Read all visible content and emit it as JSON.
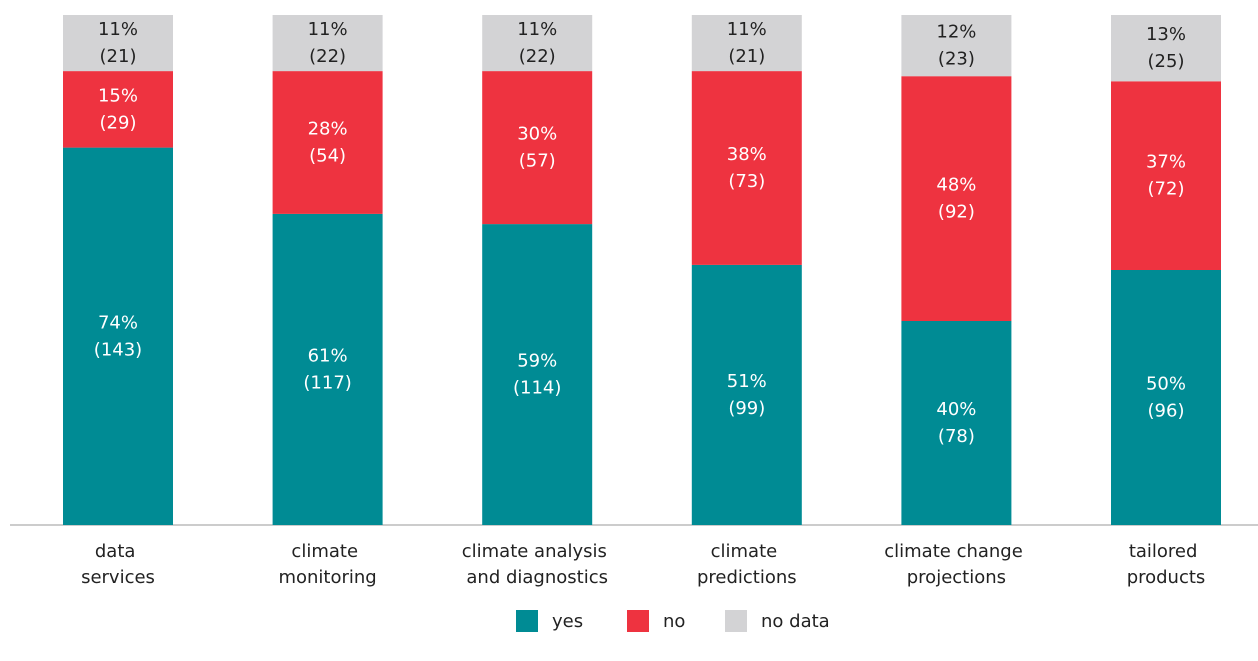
{
  "chart_data": {
    "type": "stacked_bar",
    "categories": [
      "data services",
      "climate monitoring",
      "climate analysis and diagnostics",
      "climate predictions",
      "climate change projections",
      "tailored products"
    ],
    "ylim": [
      0,
      100
    ],
    "series": [
      {
        "name": "yes",
        "color": "#008b94",
        "label_color": "#ffffff",
        "values": [
          74,
          61,
          59,
          51,
          40,
          50
        ],
        "value_labels": [
          "74%",
          "61%",
          "59%",
          "51%",
          "40%",
          "50%"
        ],
        "count_labels": [
          "(143)",
          "(117)",
          "(114)",
          "(99)",
          "(78)",
          "(96)"
        ]
      },
      {
        "name": "no",
        "color": "#ee3340",
        "label_color": "#ffffff",
        "values": [
          15,
          28,
          30,
          38,
          48,
          37
        ],
        "value_labels": [
          "15%",
          "28%",
          "30%",
          "38%",
          "48%",
          "37%"
        ],
        "count_labels": [
          "(29)",
          "(54)",
          "(57)",
          "(73)",
          "(92)",
          "(72)"
        ]
      },
      {
        "name": "no data",
        "color": "#d3d3d5",
        "label_color": "#222222",
        "values": [
          11,
          11,
          11,
          11,
          12,
          13
        ],
        "value_labels": [
          "11%",
          "11%",
          "11%",
          "11%",
          "12%",
          "13%"
        ],
        "count_labels": [
          "(21)",
          "(22)",
          "(22)",
          "(21)",
          "(23)",
          "(25)"
        ]
      }
    ]
  }
}
